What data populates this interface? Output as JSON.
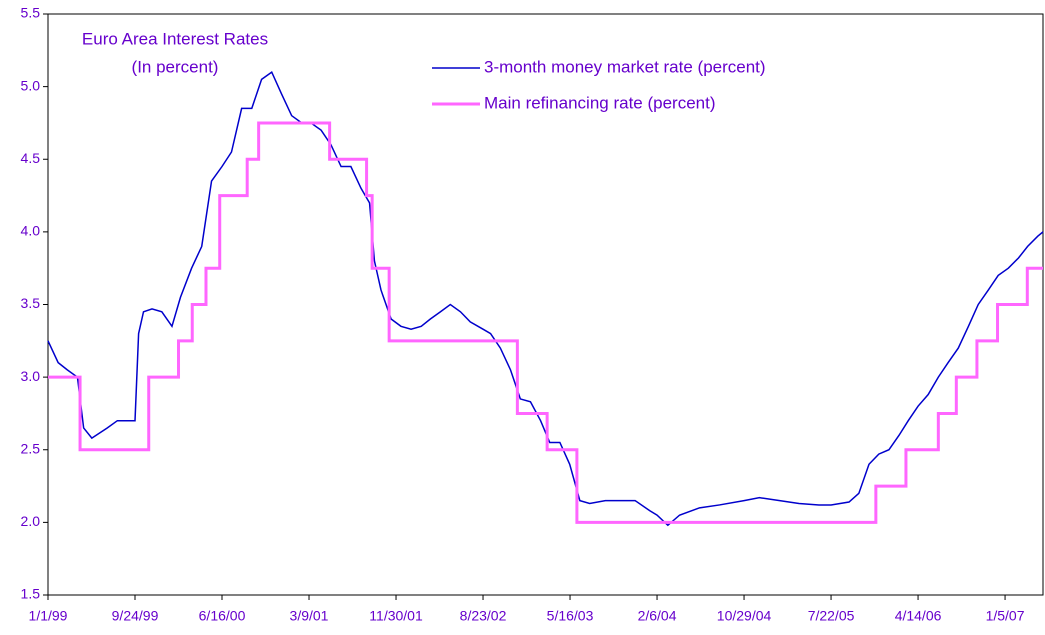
{
  "chart_data": {
    "type": "line",
    "title": "Euro Area Interest Rates",
    "subtitle": "(In percent)",
    "xlim": [
      "1/1/99",
      "5/1/07"
    ],
    "xticks": [
      "1/1/99",
      "9/24/99",
      "6/16/00",
      "3/9/01",
      "11/30/01",
      "8/23/02",
      "5/16/03",
      "2/6/04",
      "10/29/04",
      "7/22/05",
      "4/14/06",
      "1/5/07"
    ],
    "ylim": [
      1.5,
      5.5
    ],
    "yticks": [
      1.5,
      {
        "value": 2,
        "label": "2.0"
      },
      2.5,
      {
        "value": 3,
        "label": "3.0"
      },
      3.5,
      {
        "value": 4,
        "label": "4.0"
      },
      4.5,
      {
        "value": 5,
        "label": "5.0"
      },
      5.5
    ],
    "series": [
      {
        "name": "3-month money market rate (percent)",
        "color": "#0000cc",
        "step": false,
        "x": [
          "1/1/99",
          "2/1/99",
          "3/1/99",
          "4/1/99",
          "4/20/99",
          "5/15/99",
          "7/1/99",
          "8/1/99",
          "9/1/99",
          "9/24/99",
          "10/5/99",
          "10/20/99",
          "11/15/99",
          "12/15/99",
          "1/15/00",
          "2/10/00",
          "3/15/00",
          "4/15/00",
          "5/15/00",
          "6/16/00",
          "7/15/00",
          "8/15/00",
          "9/15/00",
          "10/15/00",
          "11/15/00",
          "12/15/00",
          "1/15/01",
          "2/15/01",
          "3/15/01",
          "4/15/01",
          "5/15/01",
          "6/15/01",
          "7/15/01",
          "8/15/01",
          "9/10/01",
          "9/25/01",
          "10/15/01",
          "11/15/01",
          "12/15/01",
          "1/15/02",
          "2/15/02",
          "3/15/02",
          "4/15/02",
          "5/15/02",
          "6/15/02",
          "7/15/02",
          "8/23/02",
          "9/15/02",
          "10/15/02",
          "11/15/02",
          "12/15/02",
          "1/15/03",
          "2/15/03",
          "3/15/03",
          "4/15/03",
          "5/15/03",
          "6/15/03",
          "7/15/03",
          "9/1/03",
          "10/15/03",
          "12/1/03",
          "1/15/04",
          "2/6/04",
          "3/10/04",
          "4/15/04",
          "6/15/04",
          "8/15/04",
          "10/29/04",
          "12/15/04",
          "2/15/05",
          "4/15/05",
          "6/15/05",
          "7/22/05",
          "9/15/05",
          "10/15/05",
          "11/15/05",
          "12/15/05",
          "1/15/06",
          "2/15/06",
          "3/15/06",
          "4/14/06",
          "5/15/06",
          "6/15/06",
          "7/15/06",
          "8/15/06",
          "9/15/06",
          "10/15/06",
          "11/15/06",
          "12/15/06",
          "1/15/07",
          "2/15/07",
          "3/15/07",
          "4/15/07",
          "5/1/07"
        ],
        "values": [
          3.25,
          3.1,
          3.05,
          3.0,
          2.65,
          2.58,
          2.65,
          2.7,
          2.7,
          2.7,
          3.3,
          3.45,
          3.47,
          3.45,
          3.35,
          3.55,
          3.75,
          3.9,
          4.35,
          4.45,
          4.55,
          4.85,
          4.85,
          5.05,
          5.1,
          4.95,
          4.8,
          4.75,
          4.75,
          4.7,
          4.6,
          4.45,
          4.45,
          4.3,
          4.2,
          3.8,
          3.6,
          3.4,
          3.35,
          3.33,
          3.35,
          3.4,
          3.45,
          3.5,
          3.45,
          3.38,
          3.33,
          3.3,
          3.2,
          3.05,
          2.85,
          2.83,
          2.7,
          2.55,
          2.55,
          2.4,
          2.15,
          2.13,
          2.15,
          2.15,
          2.15,
          2.08,
          2.05,
          1.98,
          2.05,
          2.1,
          2.12,
          2.15,
          2.17,
          2.15,
          2.13,
          2.12,
          2.12,
          2.14,
          2.2,
          2.4,
          2.47,
          2.5,
          2.6,
          2.7,
          2.8,
          2.88,
          3.0,
          3.1,
          3.2,
          3.35,
          3.5,
          3.6,
          3.7,
          3.75,
          3.82,
          3.9,
          3.97,
          4.0
        ]
      },
      {
        "name": "Main refinancing rate (percent)",
        "color": "#ff66ff",
        "step": true,
        "x": [
          "1/1/99",
          "4/9/99",
          "11/5/99",
          "2/4/00",
          "3/17/00",
          "4/28/00",
          "6/9/00",
          "9/1/00",
          "10/6/00",
          "5/11/01",
          "9/1/01",
          "9/18/01",
          "11/9/01",
          "12/6/02",
          "3/7/03",
          "6/6/03",
          "12/6/05",
          "3/8/06",
          "6/15/06",
          "8/9/06",
          "10/11/06",
          "12/13/06",
          "3/14/07"
        ],
        "values": [
          3.0,
          2.5,
          3.0,
          3.25,
          3.5,
          3.75,
          4.25,
          4.5,
          4.75,
          4.5,
          4.25,
          3.75,
          3.25,
          2.75,
          2.5,
          2.0,
          2.25,
          2.5,
          2.75,
          3.0,
          3.25,
          3.5,
          3.75
        ]
      }
    ]
  }
}
